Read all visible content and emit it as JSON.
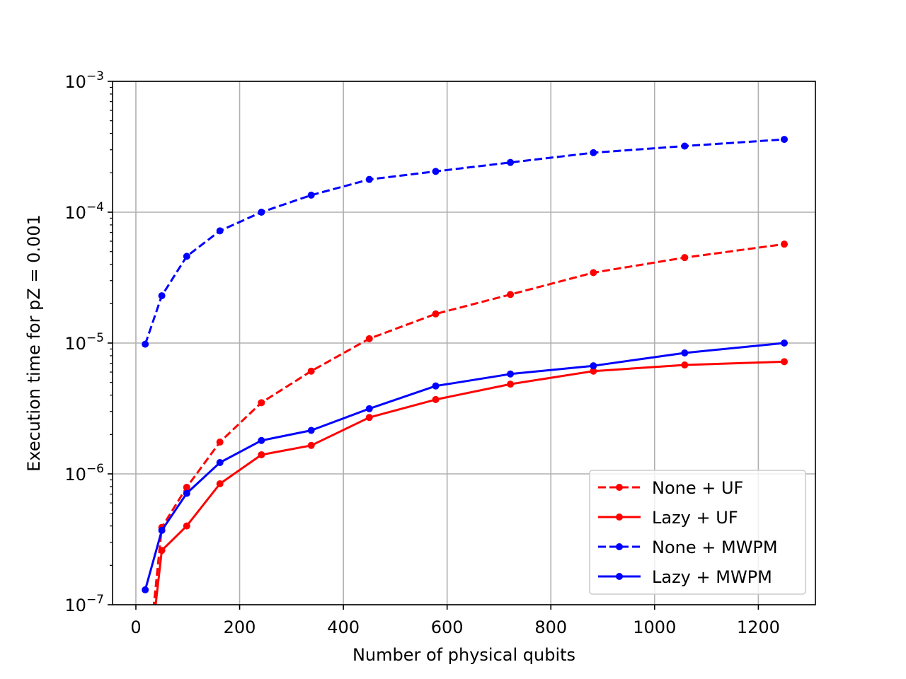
{
  "chart_data": {
    "type": "line",
    "title": "",
    "xlabel": "Number of physical qubits",
    "ylabel": "Execution time for pZ = 0.001",
    "xlim": [
      -45,
      1310
    ],
    "ylim": [
      1e-07,
      0.001
    ],
    "yscale": "log",
    "grid": true,
    "legend_position": "lower-right",
    "x_ticks": [
      0,
      200,
      400,
      600,
      800,
      1000,
      1200
    ],
    "y_ticks": [
      {
        "base": "10",
        "exp": "−7",
        "value": 1e-07
      },
      {
        "base": "10",
        "exp": "−6",
        "value": 1e-06
      },
      {
        "base": "10",
        "exp": "−5",
        "value": 1e-05
      },
      {
        "base": "10",
        "exp": "−4",
        "value": 0.0001
      },
      {
        "base": "10",
        "exp": "−3",
        "value": 0.001
      }
    ],
    "x": [
      18,
      50,
      98,
      162,
      242,
      338,
      450,
      578,
      722,
      882,
      1058,
      1250
    ],
    "series": [
      {
        "name": "None + UF",
        "color": "#ff0000",
        "style": "dashed",
        "values": [
          2.3e-08,
          3.9e-07,
          7.9e-07,
          1.75e-06,
          3.5e-06,
          6.1e-06,
          1.08e-05,
          1.67e-05,
          2.35e-05,
          3.45e-05,
          4.5e-05,
          5.7e-05
        ]
      },
      {
        "name": "Lazy + UF",
        "color": "#ff0000",
        "style": "solid",
        "values": [
          2e-08,
          2.6e-07,
          4e-07,
          8.4e-07,
          1.4e-06,
          1.65e-06,
          2.7e-06,
          3.7e-06,
          4.85e-06,
          6.1e-06,
          6.8e-06,
          7.2e-06
        ]
      },
      {
        "name": "None + MWPM",
        "color": "#0000ff",
        "style": "dashed",
        "values": [
          9.8e-06,
          2.3e-05,
          4.6e-05,
          7.2e-05,
          0.0001,
          0.000135,
          0.000178,
          0.000205,
          0.00024,
          0.000285,
          0.00032,
          0.00036
        ]
      },
      {
        "name": "Lazy + MWPM",
        "color": "#0000ff",
        "style": "solid",
        "values": [
          1.3e-07,
          3.7e-07,
          7.1e-07,
          1.22e-06,
          1.8e-06,
          2.15e-06,
          3.15e-06,
          4.7e-06,
          5.8e-06,
          6.7e-06,
          8.4e-06,
          1e-05
        ]
      }
    ]
  }
}
